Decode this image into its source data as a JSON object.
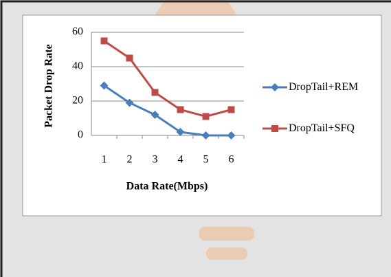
{
  "chart_data": {
    "type": "line",
    "y_label": "Packet Drop Rate",
    "x_label": "Data Rate(Mbps)",
    "categories": [
      "1",
      "2",
      "3",
      "4",
      "5",
      "6"
    ],
    "series": [
      {
        "name": "DropTail+REM",
        "color": "#4a7ebb",
        "marker": "diamond",
        "values": [
          29,
          19,
          12,
          2,
          0,
          0
        ]
      },
      {
        "name": "DropTail+SFQ",
        "color": "#be4b48",
        "marker": "square",
        "values": [
          55,
          45,
          25,
          15,
          11,
          15
        ]
      }
    ],
    "ylim": [
      0,
      60
    ],
    "yticks": [
      0,
      20,
      40,
      60
    ],
    "grid": true,
    "legend": "right"
  }
}
